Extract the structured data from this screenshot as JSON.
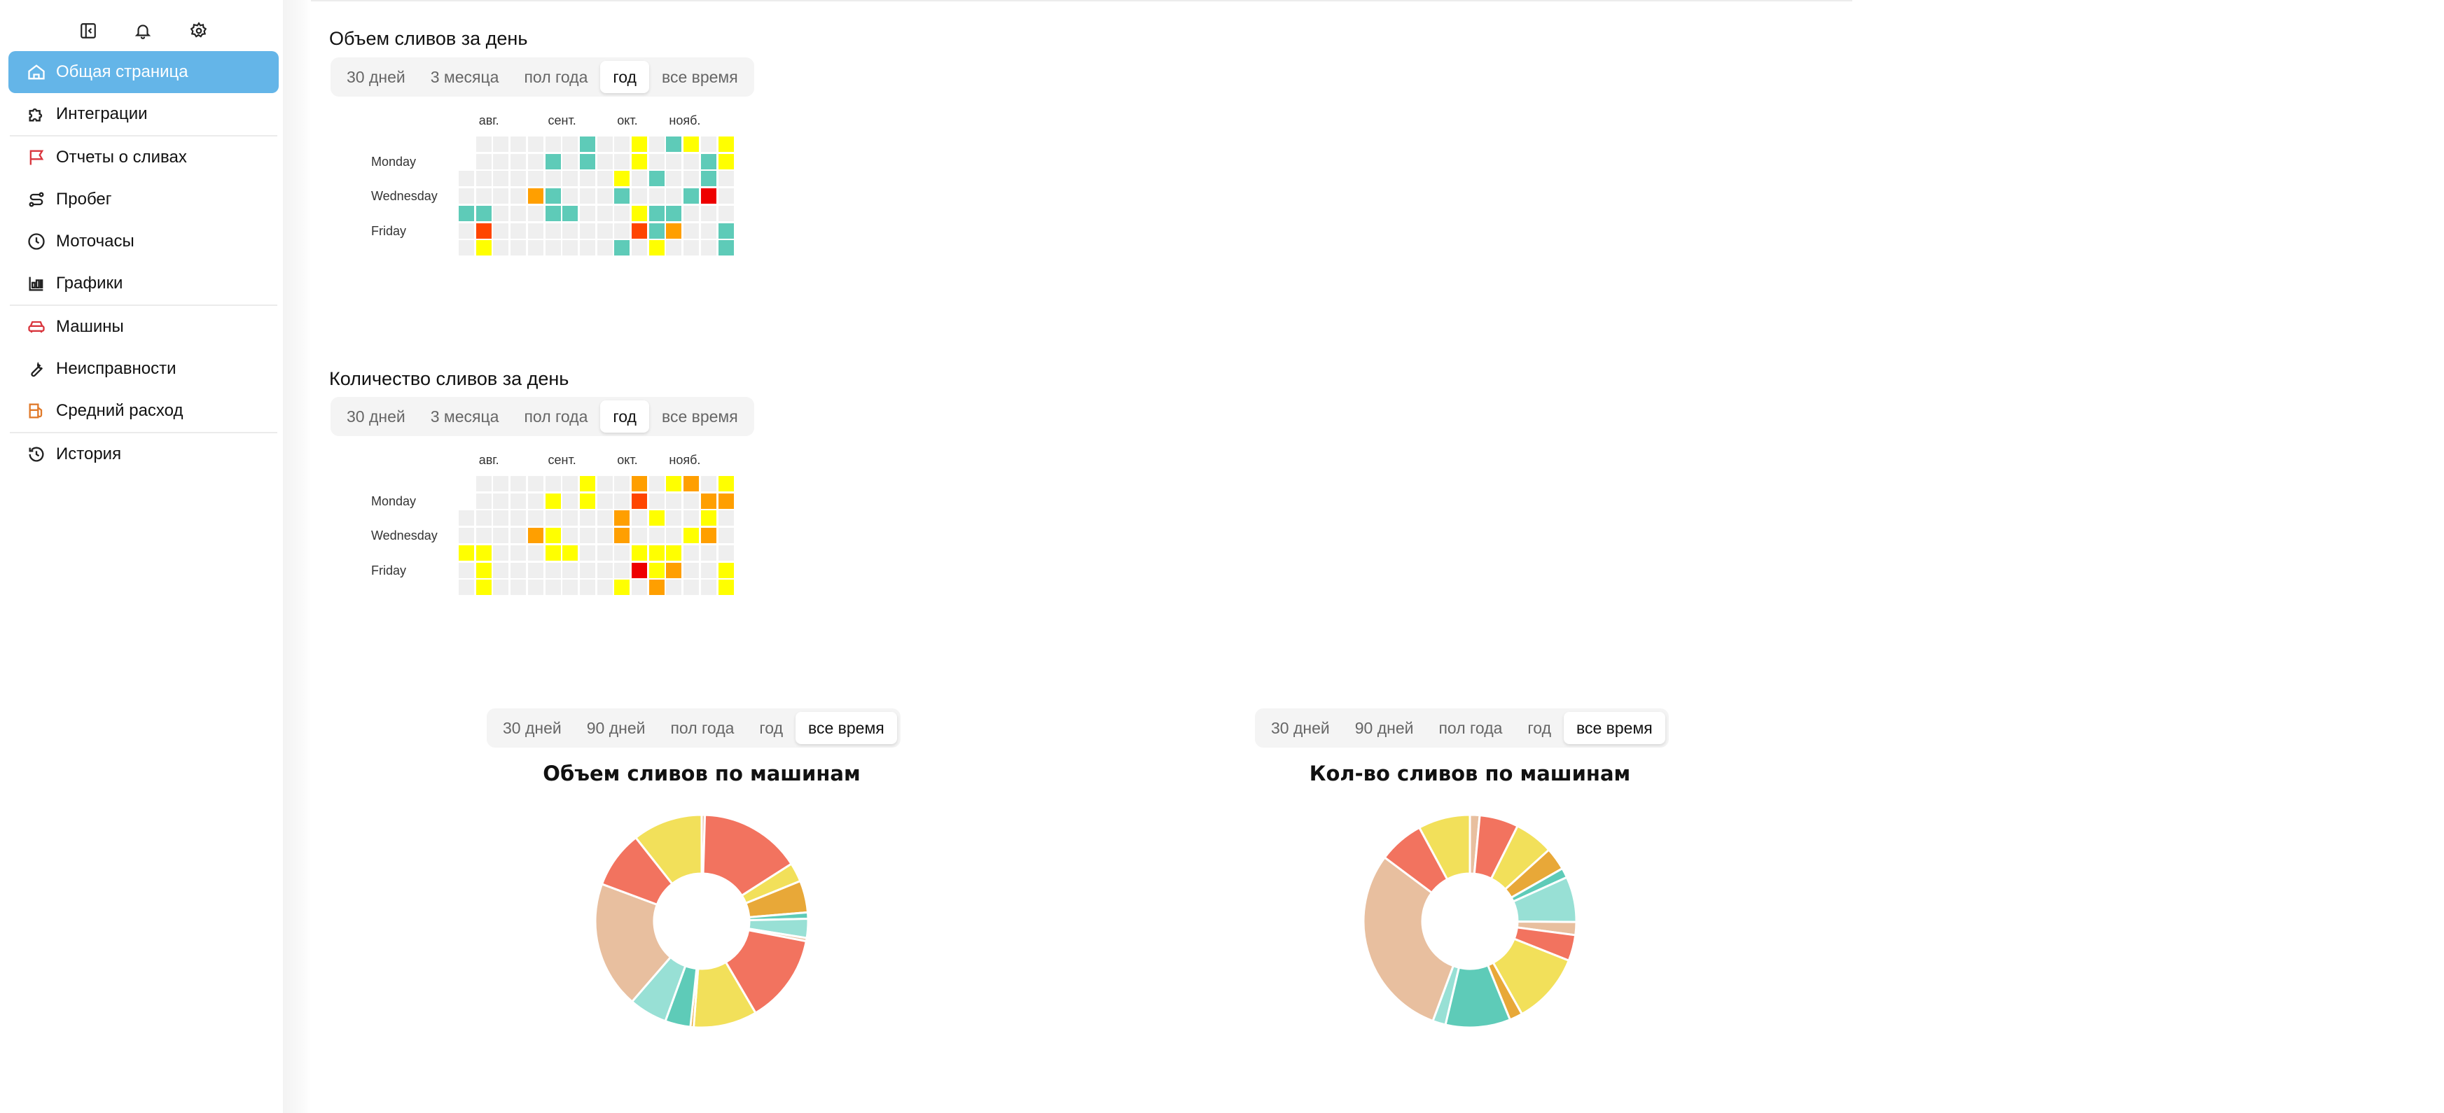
{
  "toolbar": {
    "icons": [
      "collapse-sidebar-icon",
      "bell-icon",
      "gear-icon"
    ]
  },
  "sidebar": {
    "items": [
      {
        "label": "Общая страница",
        "icon": "home-icon",
        "active": true
      },
      {
        "label": "Интеграции",
        "icon": "puzzle-icon"
      },
      {
        "label": "Отчеты о сливах",
        "icon": "flag-icon",
        "color": "#d9363e"
      },
      {
        "label": "Пробег",
        "icon": "route-icon"
      },
      {
        "label": "Моточасы",
        "icon": "clock-icon"
      },
      {
        "label": "Графики",
        "icon": "bar-chart-icon"
      },
      {
        "label": "Машины",
        "icon": "car-icon",
        "color": "#d9363e"
      },
      {
        "label": "Неисправности",
        "icon": "wrench-icon"
      },
      {
        "label": "Средний расход",
        "icon": "fuel-icon",
        "color": "#e07a2a"
      },
      {
        "label": "История",
        "icon": "history-icon"
      }
    ]
  },
  "heatmap_colors": {
    ".": "#efefef",
    "t": "#5ecbb8",
    "y": "#ffff00",
    "o": "#ff9f00",
    "r": "#ff4500",
    "R": "#ee0000"
  },
  "volume_section": {
    "title": "Объем сливов за день",
    "periods": [
      "30 дней",
      "3 месяца",
      "пол года",
      "год",
      "все время"
    ],
    "selected": 3
  },
  "count_section": {
    "title": "Количество сливов за день",
    "periods": [
      "30 дней",
      "3 месяца",
      "пол года",
      "год",
      "все время"
    ],
    "selected": 3
  },
  "machines_periods": [
    "30 дней",
    "90 дней",
    "пол года",
    "год",
    "все время"
  ],
  "machines_selected": 4,
  "chart_data": [
    {
      "type": "heatmap",
      "title": "Объем сливов за день",
      "months": [
        "авг.",
        "сент.",
        "окт.",
        "нояб."
      ],
      "day_labels": [
        "Monday",
        "Wednesday",
        "Friday"
      ],
      "rows": [
        "-......t..y.ty.y",
        "-....t.t..y...ty",
        ".........y.t..t.",
        "....ot...t...tR.",
        "tt...tt...ytt...",
        ".r........rto..t",
        ".y.......t.y...t"
      ]
    },
    {
      "type": "heatmap",
      "title": "Количество сливов за день",
      "months": [
        "авг.",
        "сент.",
        "окт.",
        "нояб."
      ],
      "day_labels": [
        "Monday",
        "Wednesday",
        "Friday"
      ],
      "rows": [
        "-......y..o.yo.y",
        "-....y.y..r...oo",
        ".........o.y..y.",
        "....oy...o...yo.",
        "yy...yy...yyy...",
        ".y........Ryo..y",
        ".y.......y.o...y"
      ]
    },
    {
      "type": "pie",
      "title": "Объем сливов по машинам",
      "values": [
        0.5,
        16,
        3,
        5,
        1,
        3,
        0.5,
        14,
        10,
        0.5,
        4,
        6,
        20,
        9,
        11
      ],
      "colors": [
        "#e8bf9f",
        "#f2735f",
        "#f2e05a",
        "#e8a838",
        "#5ecbb8",
        "#98e0d5",
        "#e8bf9f",
        "#f2735f",
        "#f2e05a",
        "#e8a838",
        "#5ecbb8",
        "#98e0d5",
        "#e8bf9f",
        "#f2735f",
        "#f2e05a"
      ]
    },
    {
      "type": "pie",
      "title": "Кол-во сливов по машинам",
      "values": [
        1.5,
        6,
        6,
        3.5,
        1.5,
        7,
        2,
        4,
        11,
        2,
        10,
        2,
        30,
        7,
        8
      ],
      "colors": [
        "#e8bf9f",
        "#f2735f",
        "#f2e05a",
        "#e8a838",
        "#5ecbb8",
        "#98e0d5",
        "#e8bf9f",
        "#f2735f",
        "#f2e05a",
        "#e8a838",
        "#5ecbb8",
        "#98e0d5",
        "#e8bf9f",
        "#f2735f",
        "#f2e05a"
      ]
    }
  ]
}
